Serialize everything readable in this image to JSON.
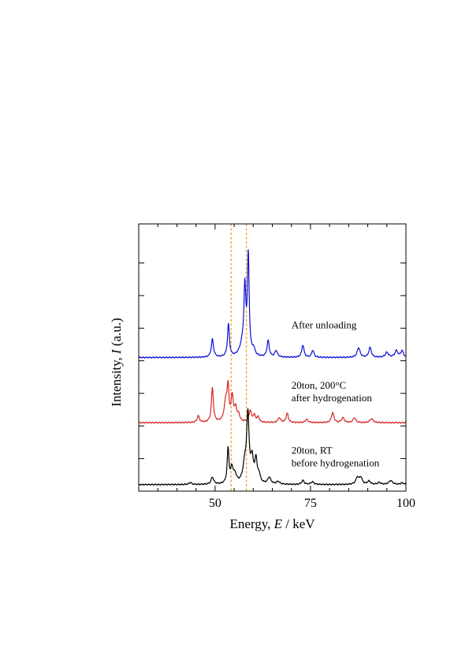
{
  "chart_data": {
    "type": "line",
    "title": "",
    "xlabel_parts": [
      "Energy, ",
      "E",
      " / keV"
    ],
    "ylabel_parts": [
      "Intensity, ",
      "I",
      " (a.u.)"
    ],
    "xlim": [
      30,
      100
    ],
    "ylim": [
      0,
      8.2
    ],
    "xticks": [
      50,
      75,
      100
    ],
    "xtick_labels": [
      "50",
      "75",
      "100"
    ],
    "yticks": [
      0,
      1,
      2,
      3,
      4,
      5,
      6,
      7
    ],
    "xminor": [
      30,
      35,
      40,
      45,
      55,
      60,
      65,
      70,
      80,
      85,
      90,
      95
    ],
    "grid": false,
    "legend": "none",
    "reference_lines": [
      {
        "x": 54.2,
        "color": "#f5a623",
        "style": "dashed"
      },
      {
        "x": 58.2,
        "color": "#f5a623",
        "style": "dashed"
      }
    ],
    "series": [
      {
        "color": "#0a10d8",
        "offset": 4.1,
        "baseline": 0.0,
        "peaks": [
          [
            49.3,
            0.55,
            0.35
          ],
          [
            53.5,
            1.0,
            0.3
          ],
          [
            57.2,
            0.35,
            0.9
          ],
          [
            57.8,
            1.9,
            0.3
          ],
          [
            58.7,
            3.0,
            0.28
          ],
          [
            60.1,
            0.2,
            0.4
          ],
          [
            63.9,
            0.5,
            0.35
          ],
          [
            66.0,
            0.2,
            0.4
          ],
          [
            73.0,
            0.38,
            0.35
          ],
          [
            75.6,
            0.22,
            0.35
          ],
          [
            87.6,
            0.3,
            0.45
          ],
          [
            90.6,
            0.3,
            0.4
          ],
          [
            95.0,
            0.15,
            0.5
          ],
          [
            97.5,
            0.2,
            0.5
          ],
          [
            99.0,
            0.2,
            0.4
          ]
        ],
        "annotation_lines": [
          "After unloading"
        ],
        "annotation_x": 70,
        "annotation_y": 5.0
      },
      {
        "color": "#d92525",
        "offset": 2.1,
        "baseline": 0.0,
        "peaks": [
          [
            45.6,
            0.2,
            0.35
          ],
          [
            49.3,
            1.05,
            0.32
          ],
          [
            52.8,
            0.6,
            0.5
          ],
          [
            53.4,
            0.95,
            0.3
          ],
          [
            54.5,
            0.75,
            0.35
          ],
          [
            55.4,
            0.4,
            0.35
          ],
          [
            56.2,
            0.2,
            0.35
          ],
          [
            59.2,
            0.35,
            0.4
          ],
          [
            60.3,
            0.2,
            0.4
          ],
          [
            61.3,
            0.15,
            0.35
          ],
          [
            66.8,
            0.15,
            0.4
          ],
          [
            68.9,
            0.28,
            0.35
          ],
          [
            74.0,
            0.1,
            0.4
          ],
          [
            80.8,
            0.3,
            0.4
          ],
          [
            83.5,
            0.15,
            0.4
          ],
          [
            86.5,
            0.15,
            0.4
          ],
          [
            91.0,
            0.12,
            0.5
          ]
        ],
        "annotation_lines": [
          "20ton, 200°C",
          "after hydrogenation"
        ],
        "annotation_x": 70,
        "annotation_y": 3.15
      },
      {
        "color": "#000000",
        "offset": 0.2,
        "baseline": 0.0,
        "peaks": [
          [
            43.5,
            0.06,
            0.4
          ],
          [
            49.3,
            0.22,
            0.4
          ],
          [
            53.4,
            1.05,
            0.28
          ],
          [
            54.4,
            0.45,
            0.4
          ],
          [
            55.2,
            0.25,
            0.5
          ],
          [
            57.8,
            0.55,
            0.6
          ],
          [
            58.6,
            2.0,
            0.38
          ],
          [
            59.7,
            0.7,
            0.4
          ],
          [
            60.7,
            0.7,
            0.35
          ],
          [
            61.5,
            0.25,
            0.4
          ],
          [
            64.2,
            0.2,
            0.5
          ],
          [
            66.5,
            0.08,
            0.5
          ],
          [
            73.0,
            0.12,
            0.4
          ],
          [
            75.5,
            0.08,
            0.5
          ],
          [
            87.3,
            0.22,
            0.5
          ],
          [
            88.2,
            0.2,
            0.4
          ],
          [
            90.3,
            0.1,
            0.5
          ],
          [
            93.0,
            0.06,
            0.5
          ],
          [
            96.0,
            0.12,
            0.6
          ],
          [
            99.0,
            0.05,
            0.5
          ]
        ],
        "annotation_lines": [
          "20ton, RT",
          "before hydrogenation"
        ],
        "annotation_x": 70,
        "annotation_y": 1.15
      }
    ]
  }
}
